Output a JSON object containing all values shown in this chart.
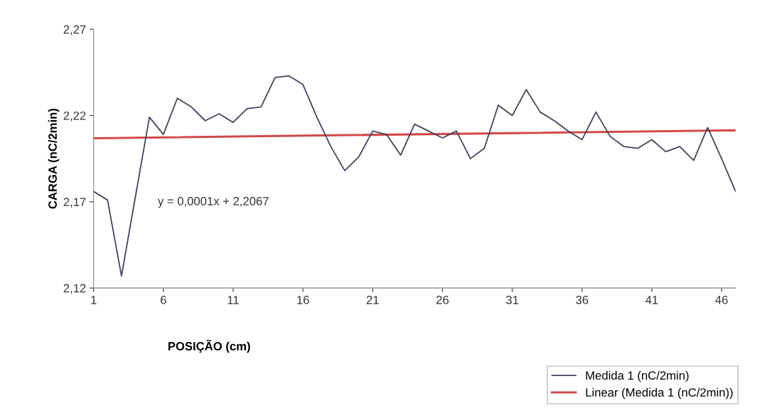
{
  "chart_data": {
    "type": "line",
    "xlabel": "POSIÇÃO (cm)",
    "ylabel": "CARGA (nC/2min)",
    "x": [
      1,
      2,
      3,
      4,
      5,
      6,
      7,
      8,
      9,
      10,
      11,
      12,
      13,
      14,
      15,
      16,
      17,
      18,
      19,
      20,
      21,
      22,
      23,
      24,
      25,
      26,
      27,
      28,
      29,
      30,
      31,
      32,
      33,
      34,
      35,
      36,
      37,
      38,
      39,
      40,
      41,
      42,
      43,
      44,
      45,
      46,
      47
    ],
    "series": [
      {
        "name": "Medida 1 (nC/2min)",
        "color": "#44445e",
        "values": [
          2.176,
          2.171,
          2.127,
          2.173,
          2.219,
          2.209,
          2.23,
          2.225,
          2.217,
          2.221,
          2.216,
          2.224,
          2.225,
          2.242,
          2.243,
          2.238,
          2.219,
          2.202,
          2.188,
          2.196,
          2.211,
          2.209,
          2.197,
          2.215,
          2.211,
          2.207,
          2.211,
          2.195,
          2.201,
          2.226,
          2.22,
          2.235,
          2.222,
          2.217,
          2.211,
          2.206,
          2.222,
          2.208,
          2.202,
          2.201,
          2.206,
          2.199,
          2.202,
          2.194,
          2.213,
          2.195,
          2.176
        ]
      },
      {
        "name": "Linear (Medida 1 (nC/2min))",
        "color": "#d24a4a",
        "type": "line",
        "x": [
          1,
          47
        ],
        "values": [
          2.2068,
          2.2114
        ]
      }
    ],
    "annotations": [
      "y = 0,0001x + 2,2067"
    ],
    "xlim": [
      1,
      47
    ],
    "xticks": [
      1,
      6,
      11,
      16,
      21,
      26,
      31,
      36,
      41,
      46
    ],
    "ylim": [
      2.12,
      2.27
    ],
    "yticks": [
      {
        "value": 2.12,
        "label": "2,12"
      },
      {
        "value": 2.17,
        "label": "2,17"
      },
      {
        "value": 2.22,
        "label": "2,22"
      },
      {
        "value": 2.27,
        "label": "2,27"
      }
    ],
    "grid": false,
    "legend": "bottom right",
    "marker": "none",
    "line_style": "solid"
  }
}
